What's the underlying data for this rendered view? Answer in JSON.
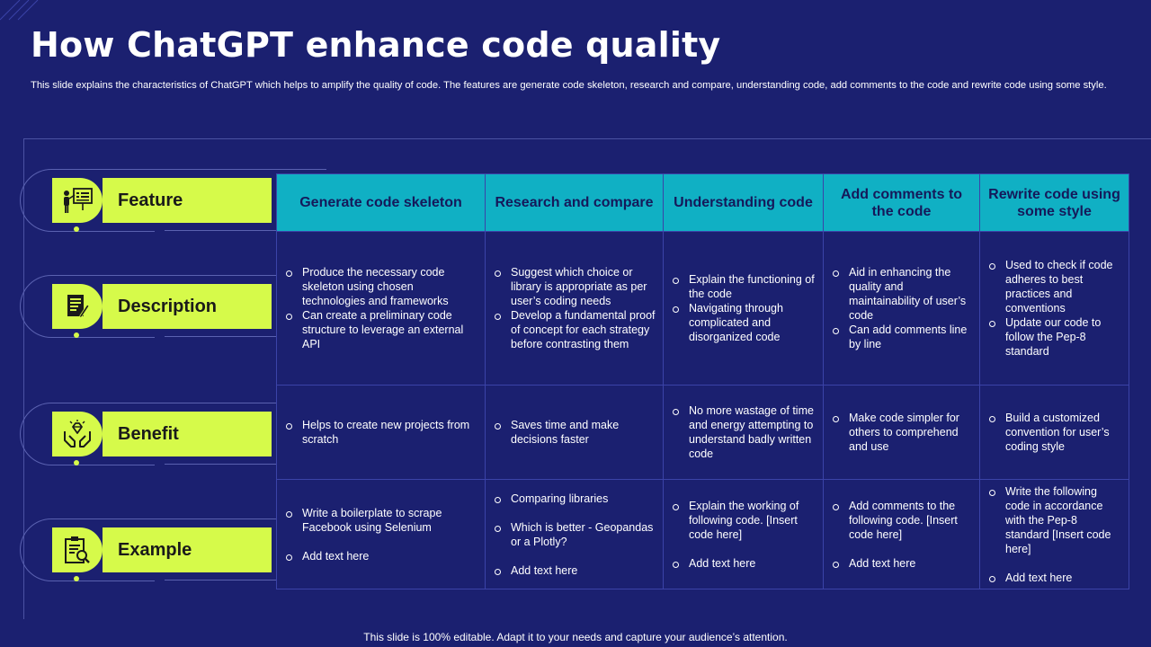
{
  "title": "How ChatGPT enhance code quality",
  "subtitle": "This slide explains the characteristics of ChatGPT which helps to amplify the quality of code. The features are generate code skeleton, research and compare, understanding code, add comments to the code and rewrite code using some style.",
  "footer": "This slide is 100% editable. Adapt it to your needs and capture your audience’s attention.",
  "colors": {
    "background": "#1b2070",
    "accent_lime": "#d6fa4a",
    "header_teal": "#10b0c4"
  },
  "row_labels": [
    {
      "label": "Feature",
      "icon": "presentation-icon"
    },
    {
      "label": "Description",
      "icon": "document-pen-icon"
    },
    {
      "label": "Benefit",
      "icon": "hands-diamond-icon"
    },
    {
      "label": "Example",
      "icon": "clipboard-search-icon"
    }
  ],
  "headers": [
    "Generate code skeleton",
    "Research and compare",
    "Understanding code",
    "Add comments to the code",
    "Rewrite code using some style"
  ],
  "rows": {
    "description": [
      [
        "Produce the necessary code skeleton using chosen technologies and frameworks",
        "Can create a preliminary code structure to leverage  an external API"
      ],
      [
        "Suggest which choice or library is appropriate  as per user’s coding needs",
        "Develop  a fundamental proof of concept for each strategy before contrasting them"
      ],
      [
        "Explain the functioning of the code",
        "Navigating  through complicated and disorganized code"
      ],
      [
        "Aid in enhancing the quality and maintainability of user’s code",
        "Can add comments line by line"
      ],
      [
        "Used to check if code adheres to best practices and conventions",
        "Update our code to follow the Pep-8 standard"
      ]
    ],
    "benefit": [
      [
        "Helps to create new projects from scratch"
      ],
      [
        "Saves time and make decisions faster"
      ],
      [
        "No more wastage of time and energy attempting to understand badly written code"
      ],
      [
        "Make code simpler for others to comprehend and use"
      ],
      [
        "Build a customized convention for user’s coding style"
      ]
    ],
    "example": [
      [
        "Write a boilerplate to scrape Facebook using Selenium",
        "Add text here"
      ],
      [
        "Comparing  libraries",
        "Which is better - Geopandas or a Plotly?",
        "Add text here"
      ],
      [
        "Explain the working of following code. [Insert code here]",
        "Add text here"
      ],
      [
        "Add comments to the following code. [Insert code here]",
        "Add text here"
      ],
      [
        "Write the following code in accordance with the Pep-8 standard [Insert code here]",
        "Add text here"
      ]
    ]
  }
}
